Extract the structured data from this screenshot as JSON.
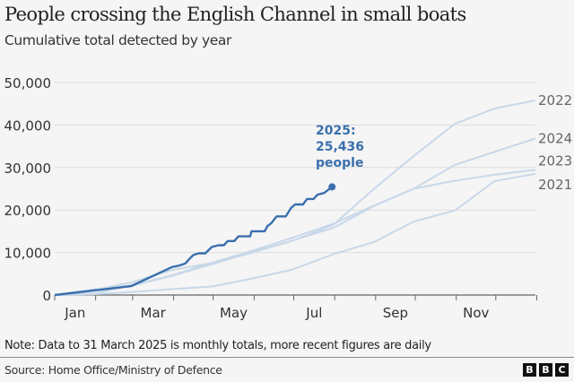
{
  "chart_data": {
    "type": "line",
    "title": "People crossing the English Channel in small boats",
    "subtitle": "Cumulative total detected by year",
    "xlabel": "",
    "ylabel": "",
    "xlim": [
      "01-01",
      "12-31"
    ],
    "ylim": [
      0,
      50000
    ],
    "y_ticks": [
      "0",
      "10,000",
      "20,000",
      "30,000",
      "40,000",
      "50,000"
    ],
    "y_tick_values": [
      0,
      10000,
      20000,
      30000,
      40000,
      50000
    ],
    "x_tick_labels": [
      "Jan",
      "Mar",
      "May",
      "Jul",
      "Sep",
      "Nov"
    ],
    "grid": "horizontal",
    "colors": {
      "highlight": "#3a6fad",
      "faded": "#c8d8e9",
      "grid": "#dddddd",
      "axis": "#666666",
      "label": "#666666"
    },
    "series": [
      {
        "name": "2022",
        "x": [
          "01-01",
          "01-31",
          "02-28",
          "03-31",
          "04-30",
          "05-31",
          "06-30",
          "07-31",
          "08-31",
          "09-30",
          "10-31",
          "11-30",
          "12-31"
        ],
        "y": [
          0,
          1341,
          2161,
          4540,
          7239,
          10148,
          12747,
          16523,
          25065,
          32730,
          40303,
          43876,
          45774
        ]
      },
      {
        "name": "2024",
        "x": [
          "01-01",
          "01-31",
          "02-28",
          "03-31",
          "04-30",
          "05-31",
          "06-30",
          "07-31",
          "08-31",
          "09-30",
          "10-31",
          "11-30",
          "12-31"
        ],
        "y": [
          0,
          358,
          2255,
          4644,
          7567,
          10448,
          13489,
          16778,
          21047,
          25051,
          30617,
          33684,
          36816
        ]
      },
      {
        "name": "2023",
        "x": [
          "01-01",
          "01-31",
          "02-28",
          "03-31",
          "04-30",
          "05-31",
          "06-30",
          "07-31",
          "08-31",
          "09-30",
          "10-31",
          "11-30",
          "12-31"
        ],
        "y": [
          0,
          1180,
          2950,
          5900,
          7500,
          10000,
          12800,
          15800,
          21000,
          25000,
          26900,
          28300,
          29437
        ]
      },
      {
        "name": "2021",
        "x": [
          "01-01",
          "01-31",
          "02-28",
          "03-31",
          "04-30",
          "05-31",
          "06-30",
          "07-31",
          "08-31",
          "09-30",
          "10-31",
          "11-30",
          "12-31"
        ],
        "y": [
          0,
          200,
          700,
          1400,
          2000,
          3900,
          6000,
          9600,
          12500,
          17300,
          19900,
          26800,
          28526
        ]
      },
      {
        "name": "2025",
        "x": [
          "01-01",
          "02-28",
          "03-31",
          "04-05",
          "04-10",
          "04-13",
          "04-16",
          "04-20",
          "04-25",
          "04-30",
          "05-05",
          "05-09",
          "05-12",
          "05-17",
          "05-20",
          "05-29",
          "05-30",
          "06-09",
          "06-11",
          "06-14",
          "06-18",
          "06-25",
          "06-29",
          "07-02",
          "07-08",
          "07-11",
          "07-16",
          "07-19",
          "07-24",
          "07-30"
        ],
        "y": [
          0,
          2100,
          6600,
          6900,
          7450,
          8500,
          9400,
          9800,
          9800,
          11300,
          11700,
          11700,
          12700,
          12700,
          13800,
          13800,
          15000,
          15000,
          16200,
          16900,
          18500,
          18500,
          20500,
          21300,
          21300,
          22600,
          22600,
          23600,
          24000,
          25436
        ]
      }
    ],
    "annotation": {
      "line1": "2025:",
      "line2": "25,436",
      "line3": "people"
    }
  },
  "note": "Note: Data to 31 March 2025  is monthly totals, more recent figures are daily",
  "source": "Source: Home Office/Ministry of Defence",
  "logo": [
    "B",
    "B",
    "C"
  ]
}
